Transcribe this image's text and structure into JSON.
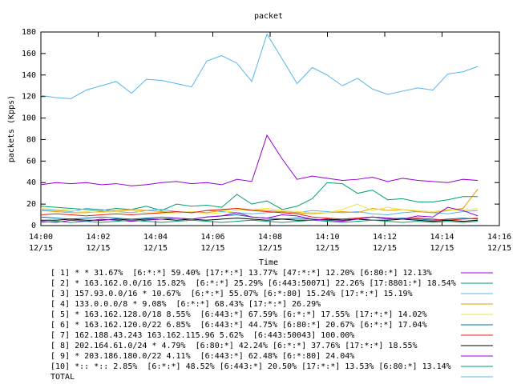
{
  "chart_data": {
    "type": "line",
    "title": "packet",
    "xlabel": "Time",
    "ylabel": "packets (Kpps)",
    "x": [
      840.0,
      840.53,
      841.05,
      841.58,
      842.1,
      842.63,
      843.16,
      843.68,
      844.21,
      844.73,
      845.26,
      845.79,
      846.31,
      846.84,
      847.36,
      847.89,
      848.42,
      848.94,
      849.47,
      849.99,
      850.52,
      851.05,
      851.57,
      852.1,
      852.62,
      853.15,
      853.68,
      854.2,
      854.73,
      855.25
    ],
    "xlim": [
      840,
      856
    ],
    "xticks": [
      {
        "value": 840,
        "label": "14:00"
      },
      {
        "value": 842,
        "label": "14:02"
      },
      {
        "value": 844,
        "label": "14:04"
      },
      {
        "value": 846,
        "label": "14:06"
      },
      {
        "value": 848,
        "label": "14:08"
      },
      {
        "value": 850,
        "label": "14:10"
      },
      {
        "value": 852,
        "label": "14:12"
      },
      {
        "value": 854,
        "label": "14:14"
      },
      {
        "value": 856,
        "label": "14:16"
      }
    ],
    "xtick_dates": [
      "12/15",
      "12/15",
      "12/15",
      "12/15",
      "12/15",
      "12/15",
      "12/15",
      "12/15",
      "12/15"
    ],
    "ylim": [
      0,
      180
    ],
    "yticks": [
      0,
      20,
      40,
      60,
      80,
      100,
      120,
      140,
      160,
      180
    ],
    "series": [
      {
        "name": "[ 1] * * 31.67%  [6:*:*] 59.40% [17:*:*] 13.77% [47:*:*] 12.20% [6:80:*] 12.13%",
        "color": "#9400d3",
        "values": [
          38,
          40,
          39,
          40,
          38,
          39,
          37,
          38,
          40,
          41,
          39,
          40,
          38,
          43,
          41,
          84,
          62,
          43,
          46,
          44,
          42,
          43,
          45,
          41,
          44,
          42,
          41,
          40,
          43,
          42
        ]
      },
      {
        "name": "[ 2] * 163.162.0.0/16 15.82%  [6:*:*] 25.29% [6:443:50071] 22.26% [17:8801:*] 18.54%",
        "color": "#009e73",
        "values": [
          18,
          17,
          16,
          15,
          14,
          16,
          15,
          18,
          14,
          20,
          18,
          19,
          17,
          29,
          20,
          23,
          15,
          18,
          25,
          40,
          39,
          30,
          33,
          24,
          25,
          22,
          22,
          24,
          27,
          27
        ]
      },
      {
        "name": "[ 3] 157.93.0.0/16 * 10.67%  [6:*:*] 55.07% [6:*:80] 15.24% [17:*:*] 15.19%",
        "color": "#56b4e9",
        "values": [
          15,
          14,
          13,
          16,
          15,
          13,
          12,
          14,
          15,
          13,
          12,
          14,
          13,
          12,
          11,
          12,
          13,
          12,
          14,
          13,
          12,
          13,
          11,
          10,
          12,
          13,
          12,
          11,
          13,
          14
        ]
      },
      {
        "name": "[ 4] 133.0.0.0/8 * 9.08%  [6:*:*] 68.43% [17:*:*] 26.29%",
        "color": "#e69f00",
        "values": [
          14,
          13,
          12,
          12,
          13,
          14,
          15,
          14,
          13,
          12,
          13,
          12,
          14,
          16,
          15,
          14,
          13,
          12,
          11,
          12,
          13,
          12,
          16,
          14,
          15,
          13,
          12,
          14,
          16,
          34
        ]
      },
      {
        "name": "[ 5] * 163.162.128.0/18 8.55%  [6:443:*] 67.59% [6:*:*] 17.55% [17:*:*] 14.02%",
        "color": "#f0e442",
        "values": [
          16,
          15,
          14,
          13,
          12,
          13,
          14,
          12,
          11,
          12,
          13,
          11,
          12,
          14,
          15,
          16,
          14,
          13,
          12,
          12,
          15,
          20,
          14,
          17,
          15,
          14,
          13,
          15,
          14,
          16
        ]
      },
      {
        "name": "[ 6] * 163.162.120.0/22 6.85%  [6:443:*] 44.75% [6:80:*] 20.67% [6:*:*] 17.04%",
        "color": "#0072b2",
        "values": [
          8,
          7,
          6,
          7,
          8,
          7,
          6,
          7,
          8,
          7,
          6,
          8,
          9,
          10,
          8,
          7,
          6,
          7,
          6,
          5,
          6,
          7,
          8,
          6,
          7,
          6,
          5,
          6,
          7,
          6
        ]
      },
      {
        "name": "[ 7] 162.188.43.243 163.162.115.96 5.62%  [6:443:50043] 100.00%",
        "color": "#e51e10",
        "values": [
          10,
          11,
          10,
          9,
          10,
          11,
          10,
          11,
          12,
          13,
          12,
          14,
          15,
          16,
          14,
          13,
          12,
          11,
          8,
          7,
          6,
          7,
          8,
          7,
          6,
          7,
          6,
          5,
          6,
          7
        ]
      },
      {
        "name": "[ 8] 202.164.61.0/24 * 4.79%  [6:80:*] 42.24% [6:*:*] 37.76% [17:*:*] 18.55%",
        "color": "#000000",
        "values": [
          5,
          5,
          6,
          5,
          5,
          6,
          5,
          6,
          6,
          5,
          6,
          5,
          6,
          7,
          6,
          5,
          6,
          5,
          5,
          6,
          5,
          6,
          5,
          5,
          6,
          5,
          4,
          5,
          4,
          5
        ]
      },
      {
        "name": "[ 9] * 203.186.180.0/22 4.11%  [6:443:*] 62.48% [6:*:80] 24.04%",
        "color": "#9400d3",
        "values": [
          4,
          3,
          5,
          4,
          6,
          5,
          4,
          5,
          6,
          7,
          6,
          8,
          9,
          12,
          8,
          7,
          10,
          9,
          6,
          5,
          4,
          6,
          8,
          7,
          6,
          9,
          8,
          17,
          14,
          9
        ]
      },
      {
        "name": "[10] *:: *:: 2.85%  [6:*:*] 48.52% [6:443:*] 20.50% [17:*:*] 13.53% [6:80:*] 13.14%",
        "color": "#009e73",
        "values": [
          3,
          4,
          3,
          4,
          3,
          4,
          5,
          4,
          3,
          4,
          5,
          4,
          3,
          4,
          5,
          4,
          3,
          4,
          5,
          4,
          3,
          4,
          5,
          4,
          3,
          4,
          3,
          4,
          3,
          4
        ]
      },
      {
        "name": "TOTAL",
        "color": "#56b4e9",
        "values": [
          121,
          119,
          118,
          126,
          130,
          134,
          123,
          136,
          135,
          132,
          129,
          153,
          158,
          151,
          134,
          178,
          155,
          132,
          147,
          140,
          130,
          137,
          127,
          122,
          125,
          128,
          126,
          141,
          143,
          148
        ]
      }
    ]
  }
}
